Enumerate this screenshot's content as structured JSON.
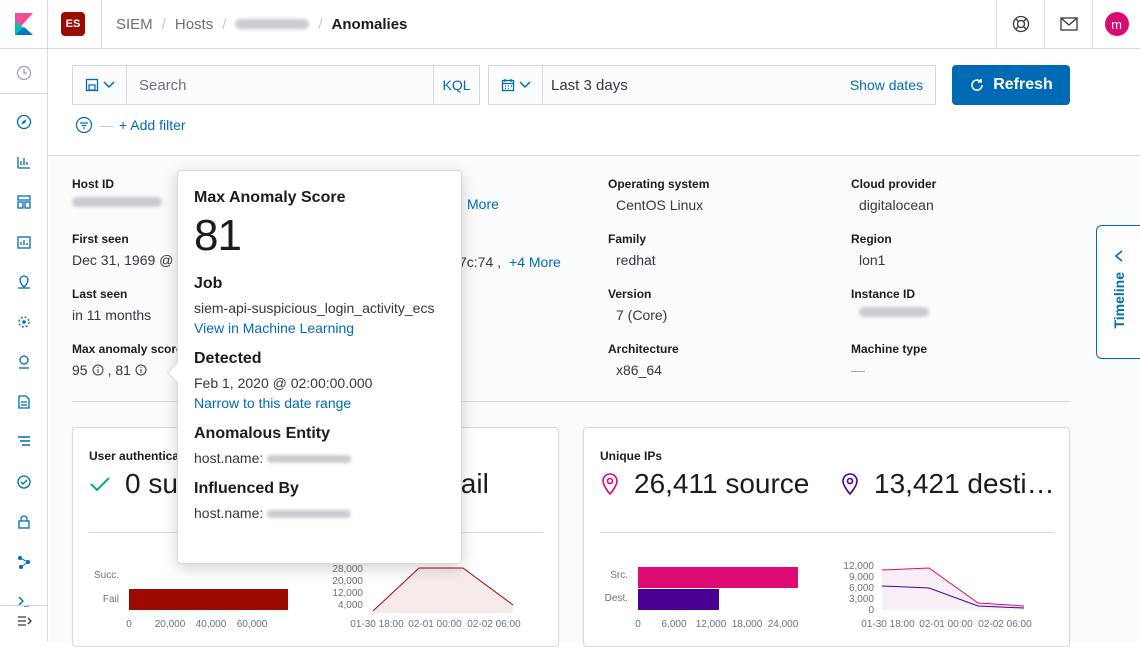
{
  "app": {
    "logo": "kibana-logo",
    "space_badge": "ES"
  },
  "breadcrumbs": {
    "siem": "SIEM",
    "hosts": "Hosts",
    "current": "Anomalies"
  },
  "header": {
    "help_icon": "help-icon",
    "mail_icon": "mail-icon",
    "avatar_initial": "m"
  },
  "search": {
    "placeholder": "Search",
    "language": "KQL"
  },
  "date": {
    "range": "Last 3 days",
    "show_dates": "Show dates",
    "refresh": "Refresh"
  },
  "filter": {
    "add": "+ Add filter"
  },
  "host": {
    "host_id_label": "Host ID",
    "first_seen_label": "First seen",
    "first_seen_value": "Dec 31, 1969 @",
    "last_seen_label": "Last seen",
    "last_seen_value": "in 11 months",
    "max_anomaly_label": "Max anomaly score",
    "score_1": "95",
    "score_2": ", 81",
    "more_1": "More",
    "mac_partial": "7c:74 ,",
    "more_2": "+4 More",
    "os_label": "Operating system",
    "os_value": "CentOS Linux",
    "family_label": "Family",
    "family_value": "redhat",
    "version_label": "Version",
    "version_value": "7 (Core)",
    "arch_label": "Architecture",
    "arch_value": "x86_64",
    "cloud_label": "Cloud provider",
    "cloud_value": "digitalocean",
    "region_label": "Region",
    "region_value": "lon1",
    "instance_label": "Instance ID",
    "machine_label": "Machine type",
    "machine_value": "—"
  },
  "tooltip": {
    "title": "Max Anomaly Score",
    "score": "81",
    "job_label": "Job",
    "job_value": "siem-api-suspicious_login_activity_ecs",
    "job_link": "View in Machine Learning",
    "detected_label": "Detected",
    "detected_value": "Feb 1, 2020 @ 02:00:00.000",
    "detected_link": "Narrow to this date range",
    "entity_label": "Anomalous Entity",
    "entity_key": "host.name:",
    "influenced_label": "Influenced By",
    "influenced_key": "host.name:"
  },
  "panels": {
    "auth_title": "User authentications",
    "auth_success": "0 su",
    "auth_fail": "fail",
    "auth_bar_labels": [
      "Succ.",
      "Fail"
    ],
    "auth_bar_ticks": [
      "0",
      "20,000",
      "40,000",
      "60,000"
    ],
    "auth_area_yticks": [
      "28,000",
      "20,000",
      "12,000",
      "4,000"
    ],
    "auth_area_xticks": [
      "01-30 18:00",
      "02-01 00:00",
      "02-02 06:00"
    ],
    "ips_title": "Unique IPs",
    "ips_source": "26,411 source",
    "ips_dest": "13,421 desti…",
    "ips_bar_labels": [
      "Src.",
      "Dest."
    ],
    "ips_bar_ticks": [
      "0",
      "6,000",
      "12,000",
      "18,000",
      "24,000"
    ],
    "ips_area_yticks": [
      "12,000",
      "9,000",
      "6,000",
      "3,000",
      "0"
    ],
    "ips_area_xticks": [
      "01-30 18:00",
      "02-01 00:00",
      "02-02 06:00"
    ]
  },
  "timeline": {
    "label": "Timeline"
  },
  "colors": {
    "accent": "#006bb4",
    "fail": "#9b0a00",
    "source": "#dd0a73",
    "destination": "#490092"
  }
}
